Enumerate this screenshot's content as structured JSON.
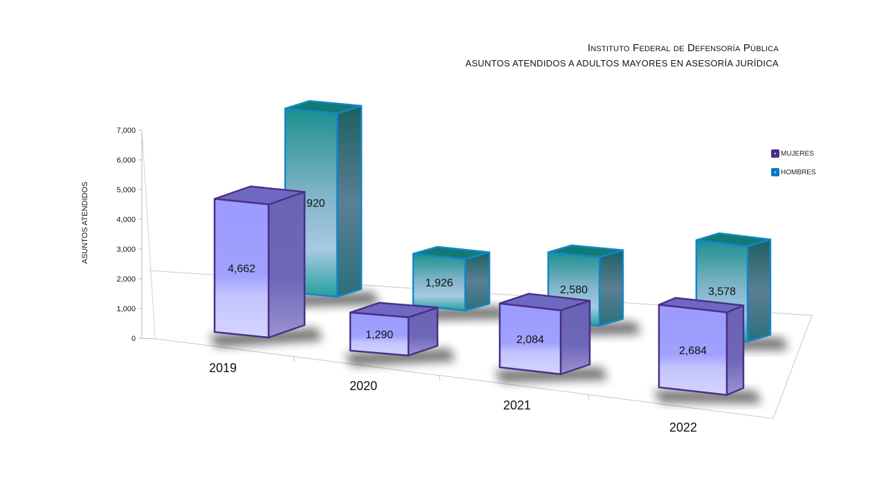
{
  "header": {
    "title": "Instituto Federal de Defensoría Pública",
    "subtitle": "ASUNTOS ATENDIDOS A ADULTOS MAYORES EN ASESORÍA JURÍDICA"
  },
  "colors": {
    "mujeres": "#4b2f86",
    "hombres": "#0a78c2"
  },
  "chart_data": {
    "type": "bar",
    "categories": [
      "2019",
      "2020",
      "2021",
      "2022"
    ],
    "series": [
      {
        "name": "MUJERES",
        "values": [
          4662,
          1290,
          2084,
          2684
        ],
        "labels": [
          "4,662",
          "1,290",
          "2,084",
          "2,684"
        ]
      },
      {
        "name": "HOMBRES",
        "values": [
          6920,
          1926,
          2580,
          3578
        ],
        "labels": [
          "6,920",
          "1,926",
          "2,580",
          "3,578"
        ]
      }
    ],
    "ylabel": "ASUNTOS ATENDIDOS",
    "ylim": [
      0,
      7000
    ],
    "yticks": [
      "0",
      "1,000",
      "2,000",
      "3,000",
      "4,000",
      "5,000",
      "6,000",
      "7,000"
    ],
    "grid": false,
    "legend": "right",
    "view": "3d"
  }
}
